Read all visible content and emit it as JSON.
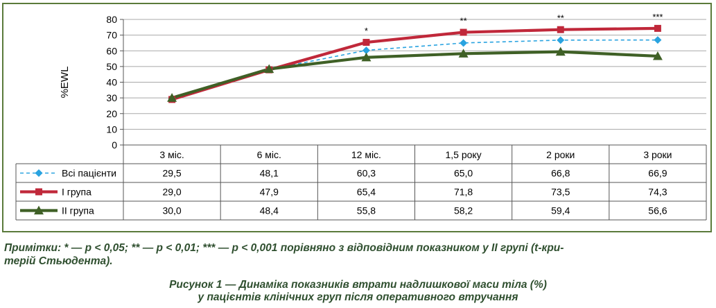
{
  "chart_data": {
    "type": "line",
    "ylabel": "%EWL",
    "ylim": [
      0,
      80
    ],
    "yticks": [
      "0",
      "10",
      "20",
      "30",
      "40",
      "50",
      "60",
      "70",
      "80"
    ],
    "categories": [
      "3 міс.",
      "6 міс.",
      "12 міс.",
      "1,5 року",
      "2 роки",
      "3 роки"
    ],
    "grid": true,
    "series": [
      {
        "name": "Всі пацієнти",
        "color": "#29a3e0",
        "marker": "diamond",
        "dashed": true,
        "values": [
          29.5,
          48.1,
          60.3,
          65.0,
          66.8,
          66.9
        ],
        "labels": [
          "29,5",
          "48,1",
          "60,3",
          "65,0",
          "66,8",
          "66,9"
        ]
      },
      {
        "name": "I група",
        "color": "#c0283a",
        "marker": "square",
        "dashed": false,
        "values": [
          29.0,
          47.9,
          65.4,
          71.8,
          73.5,
          74.3
        ],
        "labels": [
          "29,0",
          "47,9",
          "65,4",
          "71,8",
          "73,5",
          "74,3"
        ]
      },
      {
        "name": "II група",
        "color": "#3f6026",
        "marker": "triangle",
        "dashed": false,
        "values": [
          30.0,
          48.4,
          55.8,
          58.2,
          59.4,
          56.6
        ],
        "labels": [
          "30,0",
          "48,4",
          "55,8",
          "58,2",
          "59,4",
          "56,6"
        ]
      }
    ],
    "annotations": [
      {
        "category_index": 2,
        "text": "*"
      },
      {
        "category_index": 3,
        "text": "**"
      },
      {
        "category_index": 4,
        "text": "**"
      },
      {
        "category_index": 5,
        "text": "***"
      }
    ]
  },
  "notes": {
    "line1": "Примітки: * — p < 0,05; ** — p < 0,01; *** — p < 0,001 порівняно з відповідним показником у II групі (t-кри-",
    "line2": "терій Стьюдента)."
  },
  "caption": {
    "line1": "Рисунок 1 — Динаміка показників втрати надлишкової маси тіла (%)",
    "line2": "у пацієнтів клінічних груп після оперативного втручання"
  }
}
